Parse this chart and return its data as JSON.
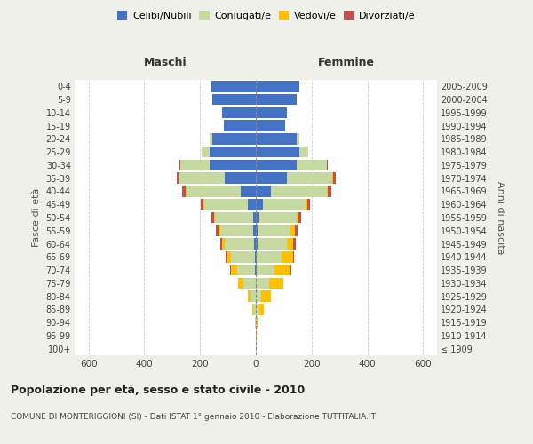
{
  "age_groups": [
    "100+",
    "95-99",
    "90-94",
    "85-89",
    "80-84",
    "75-79",
    "70-74",
    "65-69",
    "60-64",
    "55-59",
    "50-54",
    "45-49",
    "40-44",
    "35-39",
    "30-34",
    "25-29",
    "20-24",
    "15-19",
    "10-14",
    "5-9",
    "0-4"
  ],
  "birth_years": [
    "≤ 1909",
    "1910-1914",
    "1915-1919",
    "1920-1924",
    "1925-1929",
    "1930-1934",
    "1935-1939",
    "1940-1944",
    "1945-1949",
    "1950-1954",
    "1955-1959",
    "1960-1964",
    "1965-1969",
    "1970-1974",
    "1975-1979",
    "1980-1984",
    "1985-1989",
    "1990-1994",
    "1995-1999",
    "2000-2004",
    "2005-2009"
  ],
  "male": {
    "celibi": [
      0,
      0,
      0,
      0,
      0,
      0,
      3,
      3,
      5,
      8,
      10,
      30,
      55,
      110,
      165,
      165,
      155,
      115,
      120,
      155,
      160
    ],
    "coniugati": [
      0,
      0,
      2,
      8,
      20,
      45,
      65,
      85,
      105,
      120,
      135,
      155,
      195,
      165,
      105,
      30,
      10,
      0,
      0,
      0,
      0
    ],
    "vedovi": [
      0,
      0,
      0,
      5,
      10,
      20,
      20,
      15,
      10,
      5,
      5,
      3,
      3,
      0,
      0,
      0,
      0,
      0,
      0,
      0,
      0
    ],
    "divorziati": [
      0,
      0,
      0,
      0,
      0,
      0,
      3,
      5,
      8,
      10,
      8,
      8,
      10,
      8,
      3,
      0,
      0,
      0,
      0,
      0,
      0
    ]
  },
  "female": {
    "nubili": [
      0,
      0,
      0,
      0,
      0,
      0,
      3,
      3,
      5,
      5,
      10,
      25,
      55,
      110,
      145,
      155,
      145,
      105,
      110,
      145,
      155
    ],
    "coniugate": [
      0,
      0,
      2,
      10,
      18,
      48,
      65,
      90,
      105,
      120,
      135,
      155,
      200,
      165,
      110,
      32,
      12,
      0,
      0,
      0,
      0
    ],
    "vedove": [
      0,
      3,
      5,
      18,
      35,
      50,
      55,
      40,
      25,
      15,
      8,
      5,
      3,
      3,
      0,
      0,
      0,
      0,
      0,
      0,
      0
    ],
    "divorziate": [
      0,
      0,
      0,
      0,
      0,
      0,
      3,
      5,
      8,
      10,
      8,
      10,
      12,
      10,
      3,
      0,
      0,
      0,
      0,
      0,
      0
    ]
  },
  "colors": {
    "celibi": "#4472c4",
    "coniugati": "#c5d9a0",
    "vedovi": "#ffc000",
    "divorziati": "#c0504d"
  },
  "xlim": 650,
  "title": "Popolazione per età, sesso e stato civile - 2010",
  "subtitle": "COMUNE DI MONTERIGGIONI (SI) - Dati ISTAT 1° gennaio 2010 - Elaborazione TUTTITALIA.IT",
  "ylabel_left": "Fasce di età",
  "ylabel_right": "Anni di nascita",
  "xlabel_maschi": "Maschi",
  "xlabel_femmine": "Femmine",
  "bg_color": "#f0f0eb",
  "plot_bg": "#ffffff"
}
